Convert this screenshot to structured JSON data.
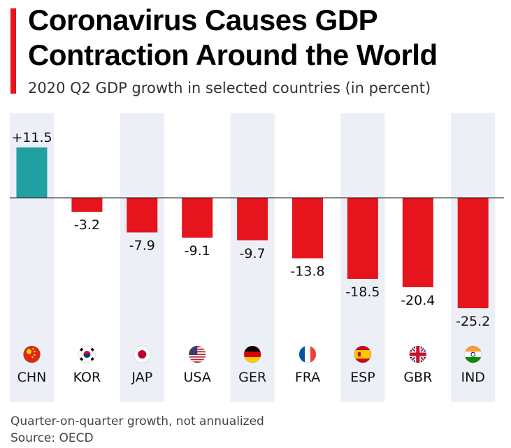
{
  "header": {
    "title": "Coronavirus Causes GDP Contraction Around the World",
    "subtitle": "2020 Q2 GDP growth in selected countries (in percent)"
  },
  "footer": {
    "note": "Quarter-on-quarter growth, not annualized",
    "source": "Source: OECD"
  },
  "colors": {
    "accent": "#e5141d",
    "positive": "#20a0a0",
    "negative": "#e5141d",
    "column_band": "#ecf0f6"
  },
  "chart_data": {
    "type": "bar",
    "categories": [
      "CHN",
      "KOR",
      "JAP",
      "USA",
      "GER",
      "FRA",
      "ESP",
      "GBR",
      "IND"
    ],
    "flags": [
      "china-flag-icon",
      "south-korea-flag-icon",
      "japan-flag-icon",
      "usa-flag-icon",
      "germany-flag-icon",
      "france-flag-icon",
      "spain-flag-icon",
      "uk-flag-icon",
      "india-flag-icon"
    ],
    "values": [
      11.5,
      -3.2,
      -7.9,
      -9.1,
      -9.7,
      -13.8,
      -18.5,
      -20.4,
      -25.2
    ],
    "value_labels": [
      "+11.5",
      "-3.2",
      "-7.9",
      "-9.1",
      "-9.7",
      "-13.8",
      "-18.5",
      "-20.4",
      "-25.2"
    ],
    "ylim": [
      -25.2,
      11.5
    ],
    "baseline": 0,
    "grid": false,
    "legend": "none",
    "title": "Coronavirus Causes GDP Contraction Around the World",
    "subtitle": "2020 Q2 GDP growth in selected countries (in percent)"
  }
}
